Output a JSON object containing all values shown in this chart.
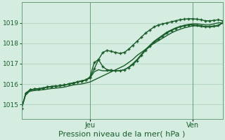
{
  "background_color": "#d4ede0",
  "grid_color": "#a8ccb8",
  "line_color": "#1a5c2a",
  "xlabel": "Pression niveau de la mer( hPa )",
  "xlabel_fontsize": 8,
  "yticks": [
    1015,
    1016,
    1017,
    1018,
    1019
  ],
  "ylim": [
    1014.3,
    1020.0
  ],
  "xlim": [
    0,
    47
  ],
  "xtick_labels": [
    [
      "Jeu",
      16
    ],
    [
      "Ven",
      40
    ]
  ],
  "vlines": [
    16,
    40
  ],
  "series": [
    {
      "x": [
        0,
        1,
        2,
        3,
        4,
        5,
        6,
        7,
        8,
        9,
        10,
        11,
        12,
        13,
        14,
        15,
        16,
        17,
        18,
        19,
        20,
        21,
        22,
        23,
        24,
        25,
        26,
        27,
        28,
        29,
        30,
        31,
        32,
        33,
        34,
        35,
        36,
        37,
        38,
        39,
        40,
        41,
        42,
        43,
        44,
        45,
        46,
        47
      ],
      "y": [
        1014.8,
        1015.55,
        1015.72,
        1015.75,
        1015.77,
        1015.8,
        1015.85,
        1015.88,
        1015.9,
        1015.92,
        1015.95,
        1016.0,
        1016.05,
        1016.1,
        1016.15,
        1016.2,
        1016.3,
        1016.75,
        1017.2,
        1017.55,
        1017.65,
        1017.6,
        1017.55,
        1017.5,
        1017.55,
        1017.7,
        1017.9,
        1018.1,
        1018.3,
        1018.5,
        1018.65,
        1018.8,
        1018.9,
        1018.95,
        1019.0,
        1019.05,
        1019.1,
        1019.15,
        1019.18,
        1019.2,
        1019.2,
        1019.18,
        1019.15,
        1019.1,
        1019.1,
        1019.12,
        1019.15,
        1019.1
      ],
      "marker": true,
      "lw": 1.0
    },
    {
      "x": [
        0,
        1,
        2,
        3,
        4,
        5,
        6,
        7,
        8,
        9,
        10,
        11,
        12,
        13,
        14,
        15,
        16,
        17,
        18,
        19,
        20,
        21,
        22,
        23,
        24,
        25,
        26,
        27,
        28,
        29,
        30,
        31,
        32,
        33,
        34,
        35,
        36,
        37,
        38,
        39,
        40,
        41,
        42,
        43,
        44,
        45,
        46,
        47
      ],
      "y": [
        1014.8,
        1015.55,
        1015.72,
        1015.75,
        1015.77,
        1015.8,
        1015.85,
        1015.88,
        1015.9,
        1015.92,
        1015.95,
        1016.0,
        1016.05,
        1016.1,
        1016.15,
        1016.2,
        1016.35,
        1017.05,
        1017.2,
        1016.85,
        1016.7,
        1016.68,
        1016.65,
        1016.65,
        1016.7,
        1016.8,
        1016.95,
        1017.15,
        1017.4,
        1017.65,
        1017.85,
        1018.05,
        1018.2,
        1018.35,
        1018.5,
        1018.62,
        1018.72,
        1018.8,
        1018.85,
        1018.9,
        1018.9,
        1018.88,
        1018.85,
        1018.82,
        1018.82,
        1018.85,
        1018.88,
        1019.0
      ],
      "marker": true,
      "lw": 1.0
    },
    {
      "x": [
        0,
        1,
        2,
        3,
        4,
        5,
        6,
        7,
        8,
        9,
        10,
        11,
        12,
        13,
        14,
        15,
        16,
        17,
        18,
        19,
        20,
        21,
        22,
        23,
        24,
        25,
        26,
        27,
        28,
        29,
        30,
        31,
        32,
        33,
        34,
        35,
        36,
        37,
        38,
        39,
        40,
        41,
        42,
        43,
        44,
        45,
        46,
        47
      ],
      "y": [
        1014.8,
        1015.55,
        1015.72,
        1015.75,
        1015.77,
        1015.8,
        1015.85,
        1015.88,
        1015.9,
        1015.92,
        1015.95,
        1016.0,
        1016.05,
        1016.1,
        1016.15,
        1016.2,
        1016.3,
        1016.6,
        1016.7,
        1016.65,
        1016.65,
        1016.65,
        1016.65,
        1016.65,
        1016.7,
        1016.82,
        1017.0,
        1017.2,
        1017.45,
        1017.7,
        1017.9,
        1018.1,
        1018.25,
        1018.4,
        1018.55,
        1018.65,
        1018.75,
        1018.82,
        1018.88,
        1018.92,
        1018.95,
        1018.95,
        1018.92,
        1018.9,
        1018.9,
        1018.95,
        1019.0,
        1019.0
      ],
      "marker": false,
      "lw": 1.0
    },
    {
      "x": [
        0,
        1,
        2,
        3,
        4,
        5,
        6,
        7,
        8,
        9,
        10,
        11,
        12,
        13,
        14,
        15,
        16,
        17,
        18,
        19,
        20,
        21,
        22,
        23,
        24,
        25,
        26,
        27,
        28,
        29,
        30,
        31,
        32,
        33,
        34,
        35,
        36,
        37,
        38,
        39,
        40,
        41,
        42,
        43,
        44,
        45,
        46,
        47
      ],
      "y": [
        1014.8,
        1015.5,
        1015.65,
        1015.68,
        1015.7,
        1015.72,
        1015.75,
        1015.78,
        1015.8,
        1015.82,
        1015.85,
        1015.9,
        1015.95,
        1015.98,
        1016.0,
        1016.05,
        1016.1,
        1016.2,
        1016.3,
        1016.4,
        1016.5,
        1016.6,
        1016.7,
        1016.8,
        1016.9,
        1017.05,
        1017.2,
        1017.4,
        1017.55,
        1017.7,
        1017.85,
        1018.0,
        1018.12,
        1018.25,
        1018.38,
        1018.5,
        1018.6,
        1018.68,
        1018.75,
        1018.8,
        1018.85,
        1018.85,
        1018.82,
        1018.8,
        1018.8,
        1018.82,
        1018.85,
        1019.0
      ],
      "marker": false,
      "lw": 1.0
    }
  ]
}
